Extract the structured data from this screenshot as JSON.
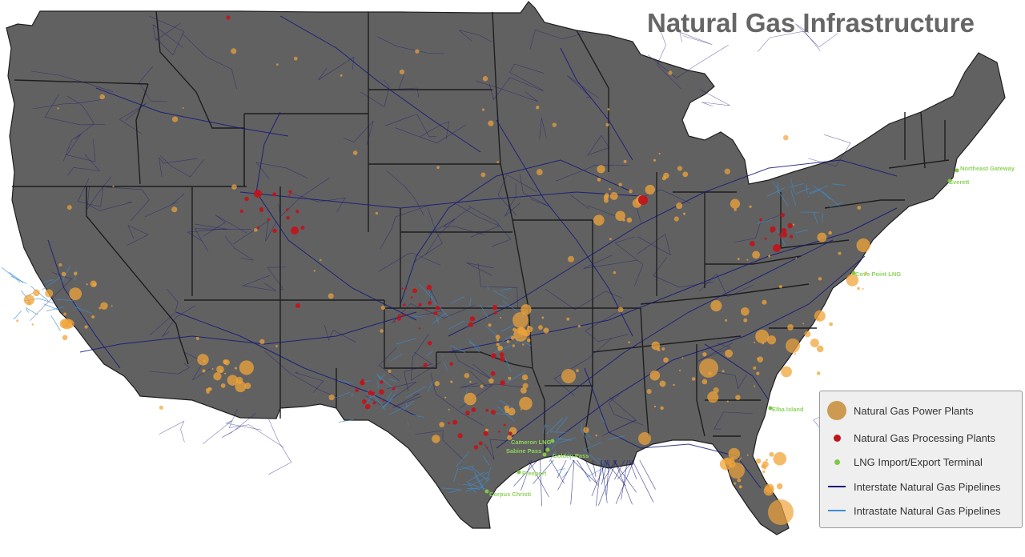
{
  "title": "Natural Gas Infrastructure",
  "colors": {
    "land": "#616161",
    "state_border": "#1e1e1e",
    "interstate_pipeline": "#14167a",
    "intrastate_pipeline": "#3c8fd6",
    "power_plant": "#f0a43a",
    "processing_plant": "#c0141b",
    "lng_terminal": "#7fc845",
    "lng_label": "#8ed35a"
  },
  "legend": {
    "power_plants": "Natural Gas Power Plants",
    "processing_plants": "Natural Gas Processing Plants",
    "lng_terminal": "LNG Import/Export Terminal",
    "interstate": "Interstate Natural Gas Pipelines",
    "intrastate": "Intrastate Natural Gas Pipelines"
  },
  "lng_terminals": [
    {
      "label": "Northeast Gateway"
    },
    {
      "label": "Everett"
    },
    {
      "label": "Cove Point LNG"
    },
    {
      "label": "Elba Island"
    },
    {
      "label": "Cameron LNG"
    },
    {
      "label": "Sabine Pass"
    },
    {
      "label": "Golden Pass"
    },
    {
      "label": "Freeport"
    },
    {
      "label": "Corpus Christi"
    }
  ]
}
